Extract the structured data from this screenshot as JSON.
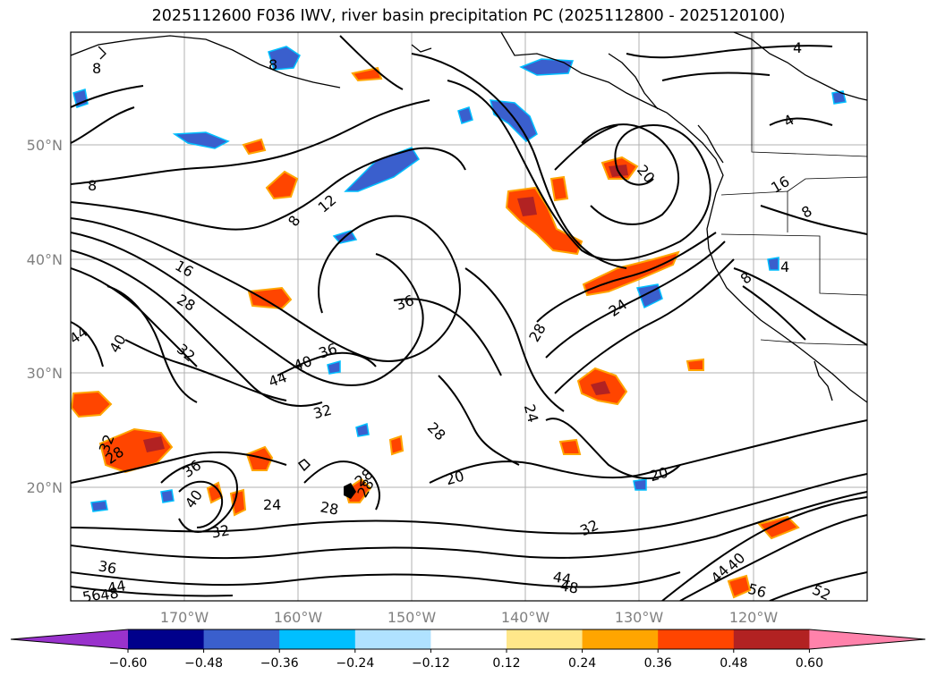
{
  "title": "2025112600 F036 IWV, river basin precipitation PC (2025112800 - 2025120100)",
  "map": {
    "lat_labels": [
      "50°N",
      "40°N",
      "30°N",
      "20°N"
    ],
    "lon_labels": [
      "170°W",
      "160°W",
      "150°W",
      "140°W",
      "130°W",
      "120°W"
    ],
    "grid": true
  },
  "contour_labels": [
    {
      "text": "8"
    },
    {
      "text": "8"
    },
    {
      "text": "8"
    },
    {
      "text": "8"
    },
    {
      "text": "12"
    },
    {
      "text": "16"
    },
    {
      "text": "28"
    },
    {
      "text": "44"
    },
    {
      "text": "40"
    },
    {
      "text": "32"
    },
    {
      "text": "36"
    },
    {
      "text": "44"
    },
    {
      "text": "40"
    },
    {
      "text": "36"
    },
    {
      "text": "32"
    },
    {
      "text": "28"
    },
    {
      "text": "24"
    },
    {
      "text": "28"
    },
    {
      "text": "20"
    },
    {
      "text": "24"
    },
    {
      "text": "28"
    },
    {
      "text": "20"
    },
    {
      "text": "20"
    },
    {
      "text": "16"
    },
    {
      "text": "4"
    },
    {
      "text": "4"
    },
    {
      "text": "8"
    },
    {
      "text": "4"
    },
    {
      "text": "8"
    },
    {
      "text": "32"
    },
    {
      "text": "28"
    },
    {
      "text": "36"
    },
    {
      "text": "40"
    },
    {
      "text": "32"
    },
    {
      "text": "24"
    },
    {
      "text": "28"
    },
    {
      "text": "28"
    },
    {
      "text": "32"
    },
    {
      "text": "36"
    },
    {
      "text": "44"
    },
    {
      "text": "48"
    },
    {
      "text": "44"
    },
    {
      "text": "48"
    },
    {
      "text": "56"
    },
    {
      "text": "52"
    },
    {
      "text": "44"
    },
    {
      "text": "40"
    },
    {
      "text": "56"
    }
  ],
  "colorbar": {
    "ticks": [
      "−0.60",
      "−0.48",
      "−0.36",
      "−0.24",
      "−0.12",
      "0.12",
      "0.24",
      "0.36",
      "0.48",
      "0.60"
    ],
    "colors": [
      "#9932cc",
      "#00008b",
      "#3a5fcd",
      "#00bfff",
      "#b0e2ff",
      "#ffffff",
      "#ffe78a",
      "#ffa500",
      "#ff4500",
      "#b22222",
      "#ff82ab"
    ]
  }
}
